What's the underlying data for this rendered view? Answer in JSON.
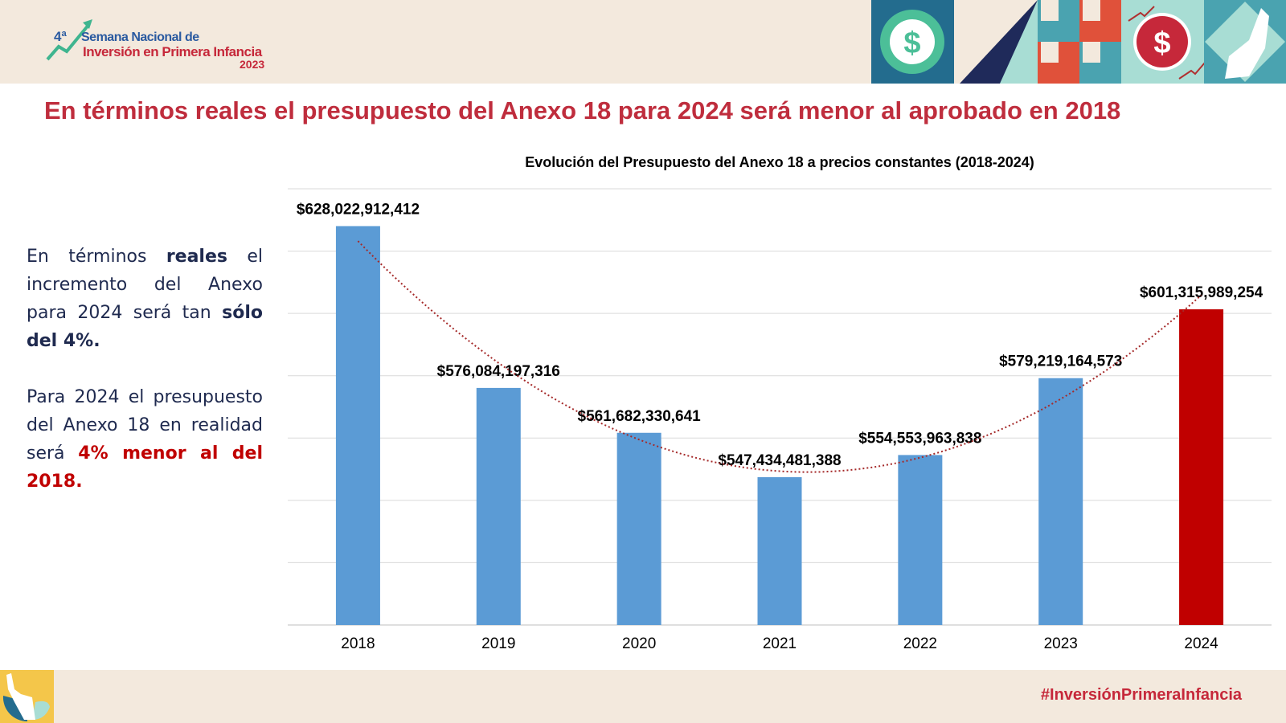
{
  "header": {
    "logo": {
      "ordinal": "4ª",
      "line1": "Semana Nacional de",
      "line2": "Inversión en Primera Infancia",
      "year": "2023"
    }
  },
  "headline": "En términos reales el presupuesto del Anexo 18 para 2024 será menor al aprobado en 2018",
  "side_text": {
    "p1_a": "En términos ",
    "p1_b": "reales",
    "p1_c": " el incremento del Anexo para 2024 será tan ",
    "p1_d": "sólo del 4%.",
    "p2_a": "Para 2024 el presupuesto del Anexo 18 en realidad será ",
    "p2_b": "4% menor al del 2018."
  },
  "footer": {
    "hashtag": "#InversiónPrimeraInfancia"
  },
  "chart_data": {
    "type": "bar",
    "title": "Evolución del Presupuesto del Anexo 18 a precios constantes (2018-2024)",
    "categories": [
      "2018",
      "2019",
      "2020",
      "2021",
      "2022",
      "2023",
      "2024"
    ],
    "values": [
      628022912412,
      576084197316,
      561682330641,
      547434481388,
      554553963838,
      579219164573,
      601315989254
    ],
    "labels": [
      "$628,022,912,412",
      "$576,084,197,316",
      "$561,682,330,641",
      "$547,434,481,388",
      "$554,553,963,838",
      "$579,219,164,573",
      "$601,315,989,254"
    ],
    "colors": [
      "#5b9bd5",
      "#5b9bd5",
      "#5b9bd5",
      "#5b9bd5",
      "#5b9bd5",
      "#5b9bd5",
      "#c00000"
    ],
    "ylim": [
      500000000000,
      640000000000
    ],
    "ytick_step": 20000000000,
    "grid": true,
    "trendline": {
      "type": "polynomial",
      "order": 2,
      "color": "#a52a2a",
      "style": "dotted"
    },
    "xlabel": "",
    "ylabel": ""
  }
}
